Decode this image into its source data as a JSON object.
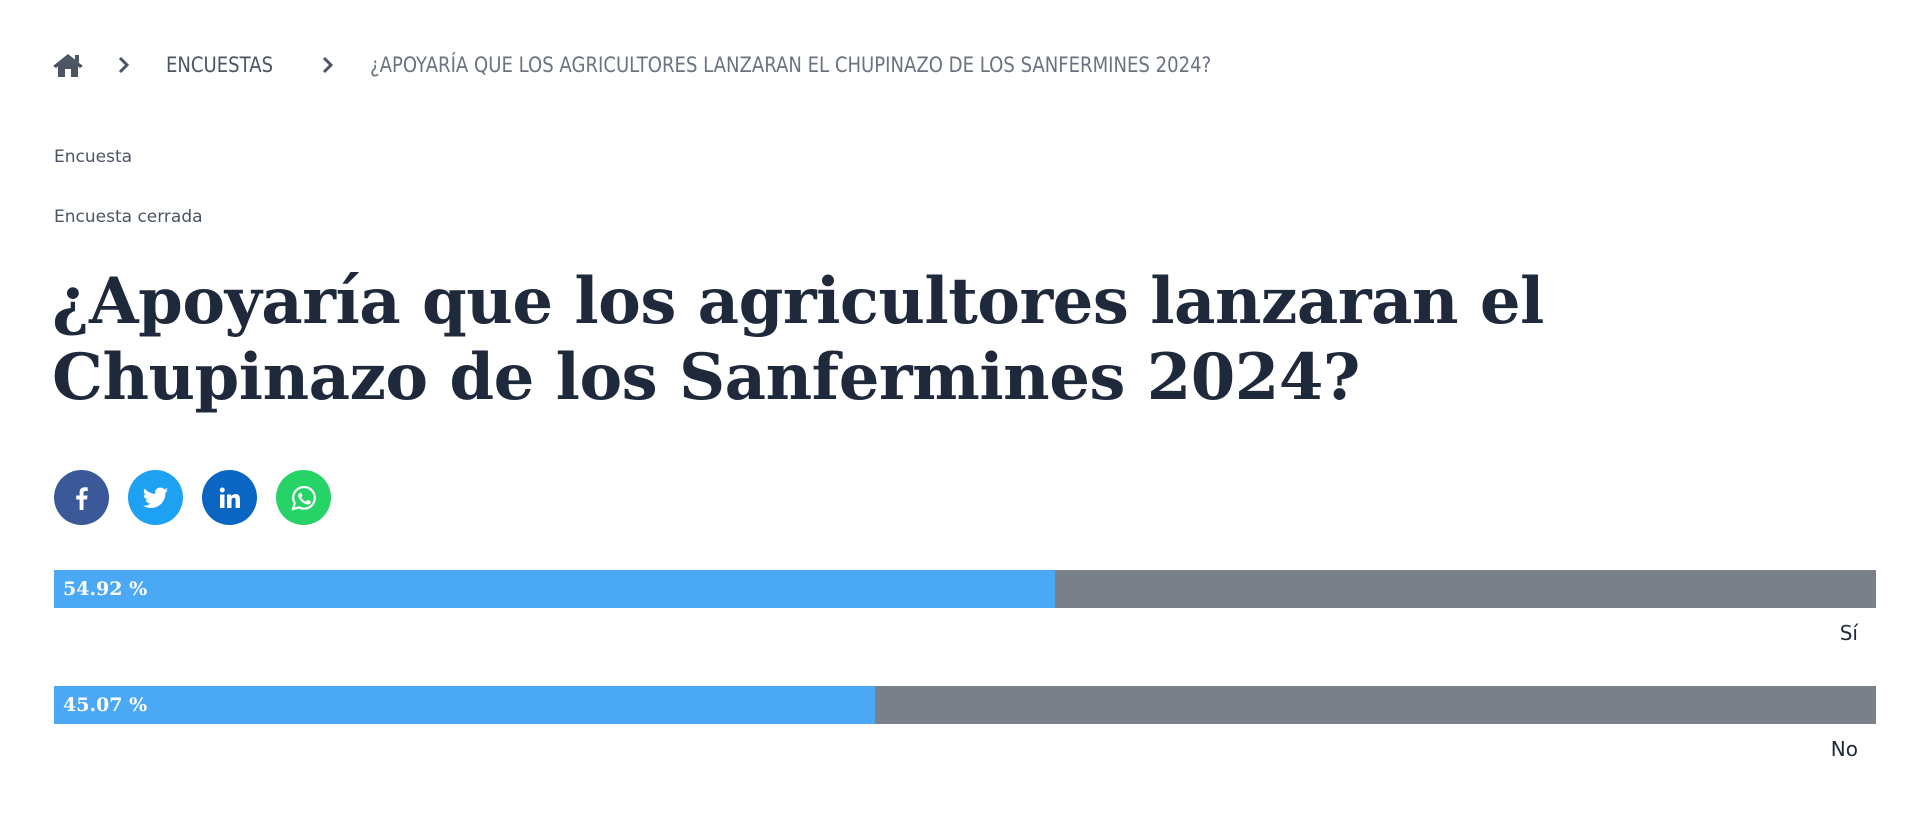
{
  "breadcrumb": {
    "home_icon": "home-icon",
    "items": [
      {
        "label": "ENCUESTAS"
      },
      {
        "label": "¿APOYARÍA QUE LOS AGRICULTORES LANZARAN EL CHUPINAZO DE LOS SANFERMINES 2024?"
      }
    ]
  },
  "meta": {
    "kind": "Encuesta",
    "status": "Encuesta cerrada"
  },
  "title": "¿Apoyaría que los agricultores lanzaran el Chupinazo de los Sanfermines 2024?",
  "share": [
    {
      "icon": "facebook-icon",
      "color": "#3b5998"
    },
    {
      "icon": "twitter-icon",
      "color": "#1da1f2"
    },
    {
      "icon": "linkedin-icon",
      "color": "#0a66c2"
    },
    {
      "icon": "whatsapp-icon",
      "color": "#25d366"
    }
  ],
  "poll": {
    "bar_color": "#4aa8f4",
    "track_color": "#7a8089",
    "options": [
      {
        "label": "Sí",
        "percent_label": "54.92 %",
        "percent": 54.92
      },
      {
        "label": "No",
        "percent_label": "45.07 %",
        "percent": 45.07
      }
    ]
  }
}
